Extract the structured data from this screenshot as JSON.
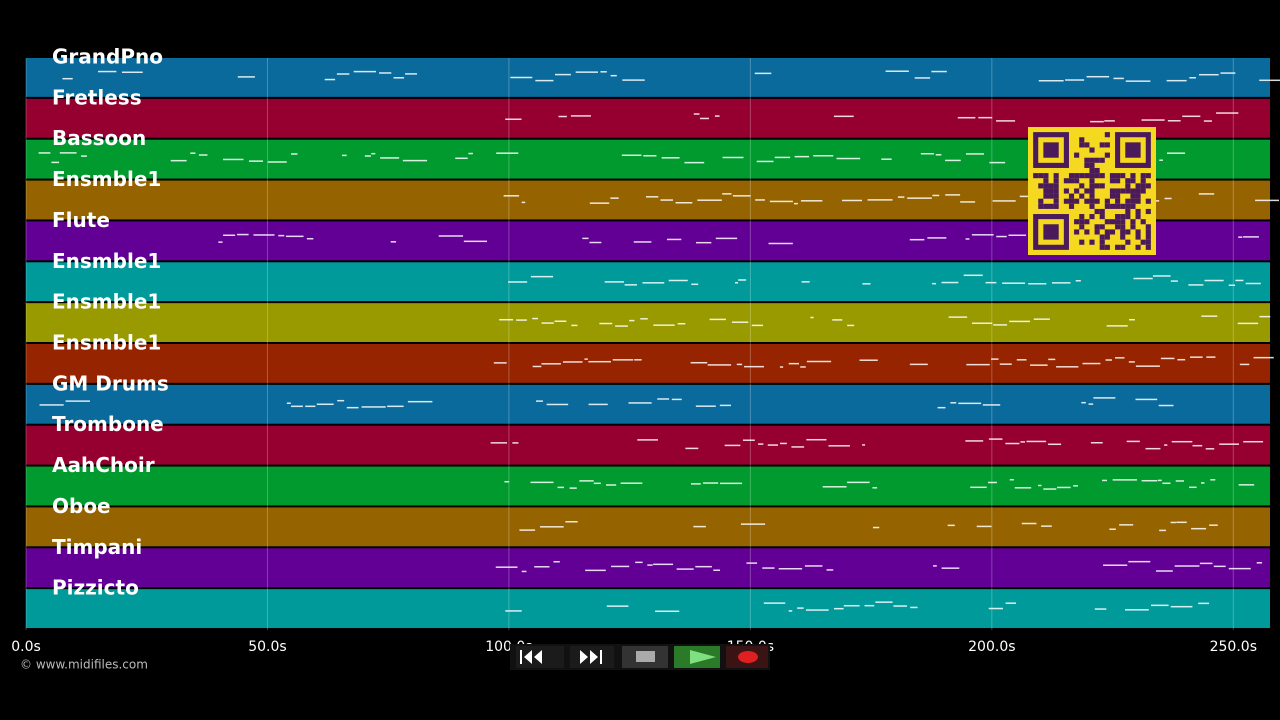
{
  "tracks": [
    {
      "name": "GrandPno",
      "color": "#0a6a9c"
    },
    {
      "name": "Fretless",
      "color": "#960030"
    },
    {
      "name": "Bassoon",
      "color": "#009a2e"
    },
    {
      "name": "Ensmble1",
      "color": "#956400"
    },
    {
      "name": "Flute",
      "color": "#620096"
    },
    {
      "name": "Ensmble1",
      "color": "#009a9a"
    },
    {
      "name": "Ensmble1",
      "color": "#989a00"
    },
    {
      "name": "Ensmble1",
      "color": "#962400"
    },
    {
      "name": "GM Drums",
      "color": "#0a6a9c"
    },
    {
      "name": "Trombone",
      "color": "#960030"
    },
    {
      "name": "AahChoir",
      "color": "#009a2e"
    },
    {
      "name": "Oboe",
      "color": "#956400"
    },
    {
      "name": "Timpani",
      "color": "#620096"
    },
    {
      "name": "Pizzicto",
      "color": "#009a9a"
    }
  ],
  "time_axis": {
    "xlim": [
      0,
      257.6
    ],
    "ticks": [
      {
        "value": 0,
        "label": "0.0s"
      },
      {
        "value": 50,
        "label": "50.0s"
      },
      {
        "value": 100,
        "label": "100.0s"
      },
      {
        "value": 150,
        "label": "150.0s"
      },
      {
        "value": 200,
        "label": "200.0s"
      },
      {
        "value": 250,
        "label": "250.0s"
      }
    ]
  },
  "footer": {
    "copyright": "© www.midifiles.com"
  }
}
